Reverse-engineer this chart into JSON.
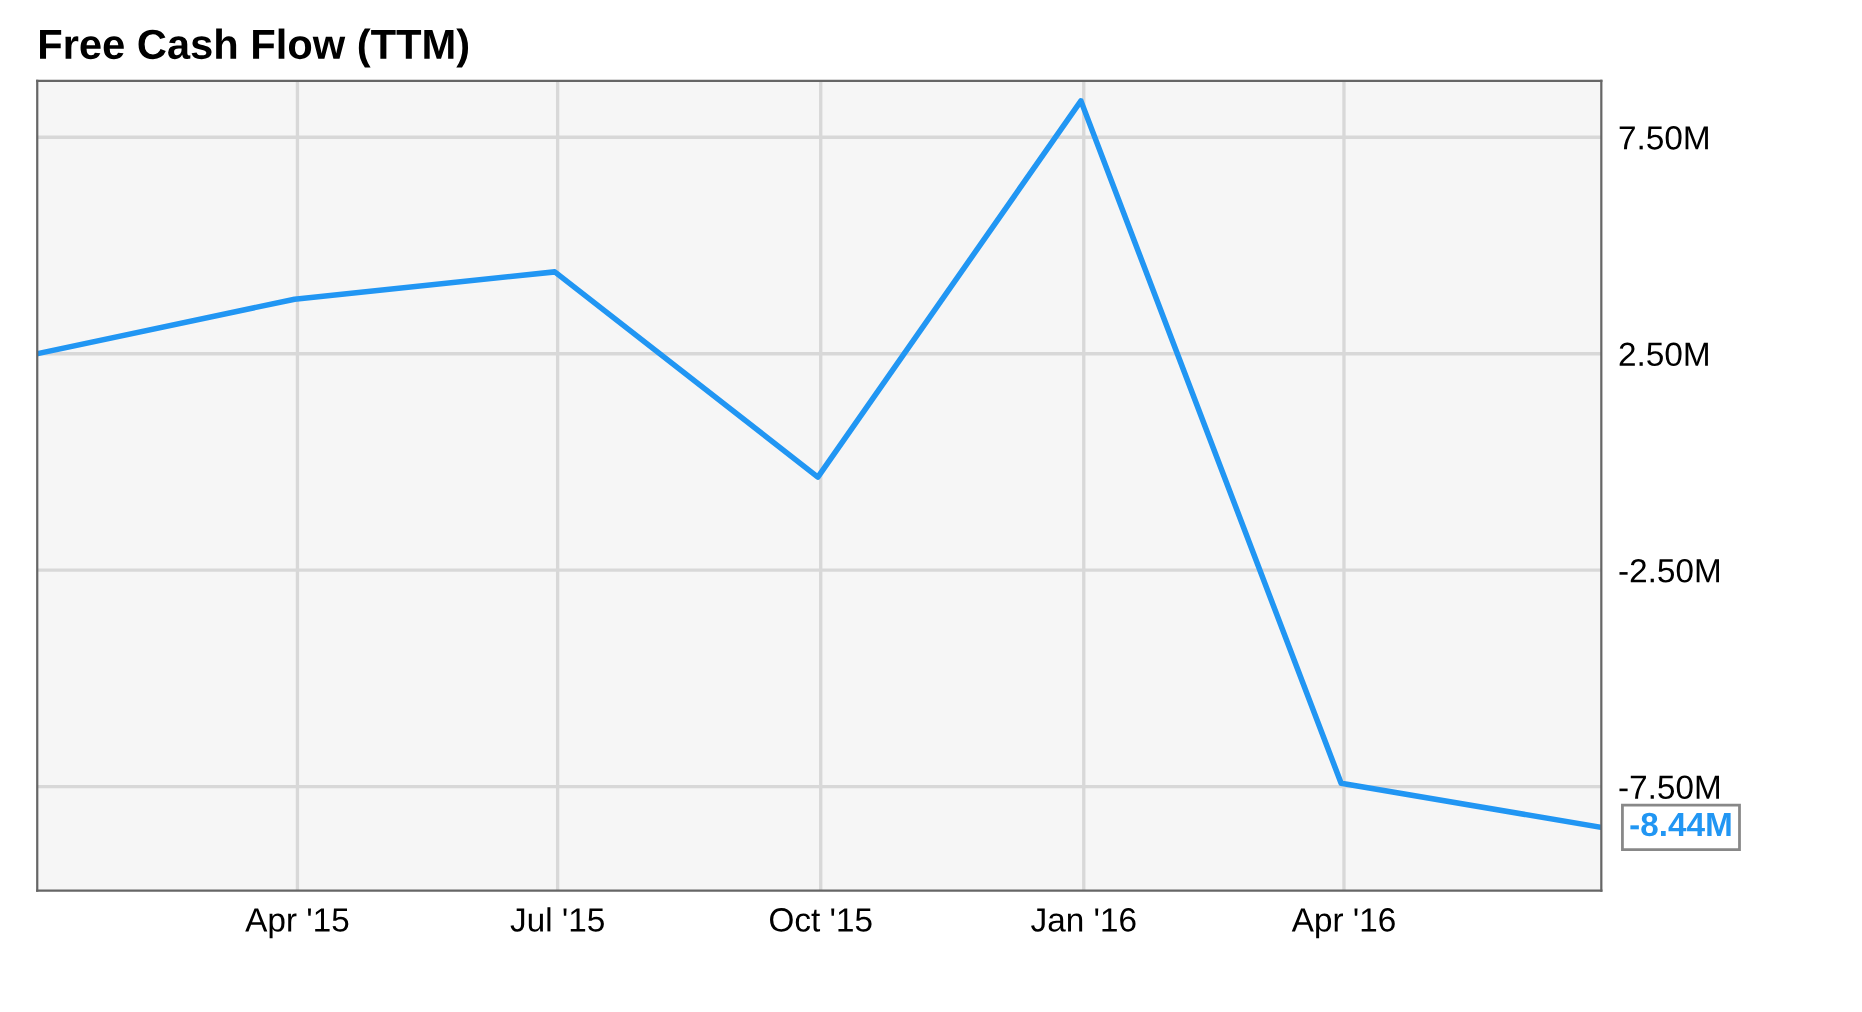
{
  "chart_data": {
    "type": "line",
    "title": "Free Cash Flow (TTM)",
    "x": [
      "2014-12-31",
      "2015-03-31",
      "2015-06-30",
      "2015-09-30",
      "2015-12-31",
      "2016-03-31",
      "2016-06-30"
    ],
    "series": [
      {
        "color": "#2196f3",
        "values": [
          2.5,
          3.76,
          4.39,
          -0.35,
          8.34,
          -7.42,
          -8.44
        ],
        "value_labels": [
          null,
          null,
          null,
          null,
          null,
          null,
          "-8.44M"
        ]
      }
    ],
    "xlim": [
      "2014-12-31",
      "2016-06-30"
    ],
    "xticks": [
      {
        "value": "2015-04-01",
        "label": "Apr '15"
      },
      {
        "value": "2015-07-01",
        "label": "Jul '15"
      },
      {
        "value": "2015-10-01",
        "label": "Oct '15"
      },
      {
        "value": "2016-01-01",
        "label": "Jan '16"
      },
      {
        "value": "2016-04-01",
        "label": "Apr '16"
      }
    ],
    "ylim": [
      -9.9,
      8.8
    ],
    "yticks": [
      {
        "value": 7.5,
        "label": "7.50M"
      },
      {
        "value": 2.5,
        "label": "2.50M"
      },
      {
        "value": -2.5,
        "label": "-2.50M"
      },
      {
        "value": -7.5,
        "label": "-7.50M"
      }
    ],
    "grid": true,
    "marker": "none",
    "line_style": "solid"
  }
}
